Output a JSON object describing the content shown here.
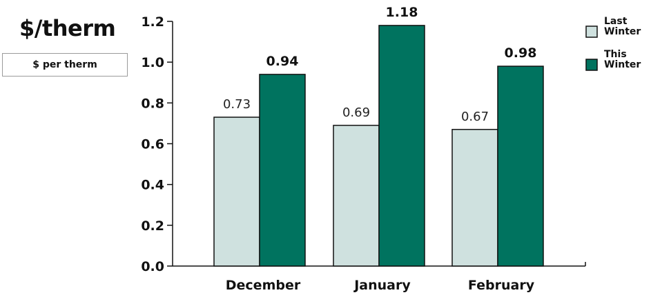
{
  "title": "$/therm",
  "unit_label": "$ per therm",
  "colors": {
    "last_winter": "#cfe1df",
    "this_winter": "#00735f",
    "axis": "#111111"
  },
  "legend": {
    "items": [
      {
        "lines": [
          "Last",
          "Winter"
        ],
        "color": "#cfe1df"
      },
      {
        "lines": [
          "This",
          "Winter"
        ],
        "color": "#00735f"
      }
    ]
  },
  "chart_data": {
    "type": "bar",
    "categories": [
      "December",
      "January",
      "February"
    ],
    "series": [
      {
        "name": "Last Winter",
        "values": [
          0.73,
          0.69,
          0.67
        ]
      },
      {
        "name": "This Winter",
        "values": [
          0.94,
          1.18,
          0.98
        ]
      }
    ],
    "value_labels": [
      [
        "0.73",
        "0.69",
        "0.67"
      ],
      [
        "0.94",
        "1.18",
        "0.98"
      ]
    ],
    "ylim": [
      0,
      1.2
    ],
    "yticks": [
      "0.0",
      "0.2",
      "0.4",
      "0.6",
      "0.8",
      "1.0",
      "1.2"
    ],
    "xlabel": "",
    "ylabel": "",
    "grid": false,
    "legend_position": "top-right"
  }
}
